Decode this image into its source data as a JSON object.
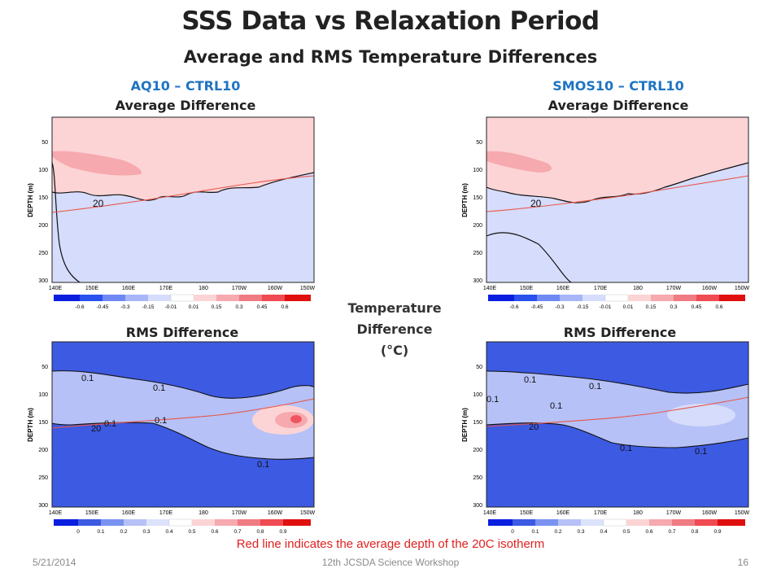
{
  "title": "SSS Data vs Relaxation Period",
  "subtitle": "Average and RMS Temperature Differences",
  "left_header": "AQ10 – CTRL10",
  "right_header": "SMOS10 – CTRL10",
  "avg_label": "Average Difference",
  "rms_label": "RMS Difference",
  "center_label": [
    "Temperature",
    "Difference",
    "(°C)"
  ],
  "note": "Red line indicates the average depth of the 20C isotherm",
  "footer": {
    "date": "5/21/2014",
    "event": "12th JCSDA Science Workshop",
    "page": "16"
  },
  "colors": {
    "pos_light": "#fcd4d6",
    "pos_mid": "#f6a9ae",
    "pos_strong": "#ef7b83",
    "neg_light": "#d6dcfb",
    "rms_dark": "#3d5ae2",
    "rms_light": "#b6c1f7",
    "isotherm": "#e8564a"
  },
  "chart_data": [
    {
      "type": "heatmap",
      "panel": "AQ10 – CTRL10 Average Difference",
      "ylabel": "DEPTH (m)",
      "x_ticks": [
        "140E",
        "150E",
        "160E",
        "170E",
        "180",
        "170W",
        "160W",
        "150W"
      ],
      "y_ticks": [
        50,
        100,
        150,
        200,
        250,
        300
      ],
      "ylim": [
        0,
        300
      ],
      "contour_labels": [
        "20"
      ],
      "colorbar": [
        -0.6,
        -0.45,
        -0.3,
        -0.15,
        -0.01,
        0.01,
        0.15,
        0.3,
        0.45,
        0.6
      ]
    },
    {
      "type": "heatmap",
      "panel": "SMOS10 – CTRL10 Average Difference",
      "ylabel": "DEPTH (m)",
      "x_ticks": [
        "140E",
        "150E",
        "160E",
        "170E",
        "180",
        "170W",
        "160W",
        "150W"
      ],
      "y_ticks": [
        50,
        100,
        150,
        200,
        250,
        300
      ],
      "ylim": [
        0,
        300
      ],
      "contour_labels": [
        "20"
      ],
      "colorbar": [
        -0.6,
        -0.45,
        -0.3,
        -0.15,
        -0.01,
        0.01,
        0.15,
        0.3,
        0.45,
        0.6
      ]
    },
    {
      "type": "heatmap",
      "panel": "AQ10 – CTRL10 RMS Difference",
      "ylabel": "DEPTH (m)",
      "x_ticks": [
        "140E",
        "150E",
        "160E",
        "170E",
        "180",
        "170W",
        "160W",
        "150W"
      ],
      "y_ticks": [
        50,
        100,
        150,
        200,
        250,
        300
      ],
      "ylim": [
        0,
        300
      ],
      "contour_labels": [
        "0.1",
        "0.1",
        "20",
        "0.1",
        "0.1",
        "0.1"
      ],
      "colorbar": [
        0,
        0.1,
        0.2,
        0.3,
        0.4,
        0.5,
        0.6,
        0.7,
        0.8,
        0.9
      ]
    },
    {
      "type": "heatmap",
      "panel": "SMOS10 – CTRL10 RMS Difference",
      "ylabel": "DEPTH (m)",
      "x_ticks": [
        "140E",
        "150E",
        "160E",
        "170E",
        "180",
        "170W",
        "160W",
        "150W"
      ],
      "y_ticks": [
        50,
        100,
        150,
        200,
        250,
        300
      ],
      "ylim": [
        0,
        300
      ],
      "contour_labels": [
        "0.1",
        "0.1",
        "0.1",
        "0.1",
        "20",
        "0.1",
        "0.1"
      ],
      "colorbar": [
        0,
        0.1,
        0.2,
        0.3,
        0.4,
        0.5,
        0.6,
        0.7,
        0.8,
        0.9
      ]
    }
  ]
}
